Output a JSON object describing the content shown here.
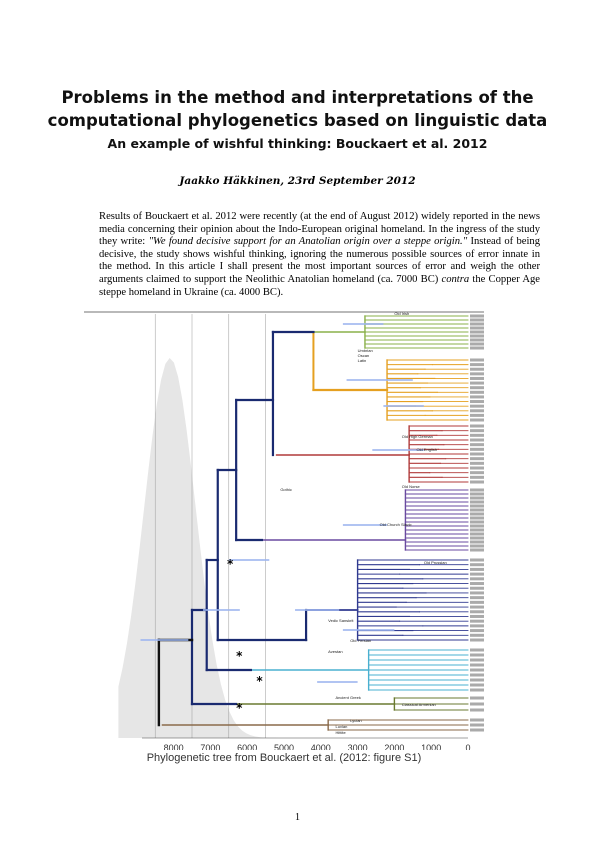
{
  "title_line1": "Problems in the method and interpretations of the",
  "title_line2": "computational phylogenetics based on linguistic data",
  "subtitle": "An example of wishful thinking: Bouckaert et al. 2012",
  "author": "Jaakko Häkkinen, 23rd September 2012",
  "abstract": {
    "part1": "Results of Bouckaert et al. 2012 were recently (at the end of August 2012) widely reported in the news media concerning their opinion about the Indo-European original homeland. In the ingress of the study they write: ",
    "quote": "\"We found decisive support for an Anatolian origin over a steppe origin.\"",
    "part2": " Instead of being decisive, the study shows wishful thinking, ignoring the numerous possible sources of error innate in the method. In this article I shall present the most important sources of error and weigh the other arguments claimed to support the Neolithic Anatolian homeland (ca. 7000 BC) ",
    "contra": "contra",
    "part3": " the Copper Age steppe homeland in Ukraine (ca. 4000 BC)."
  },
  "figure": {
    "caption": "Phylogenetic tree from Bouckaert et al. (2012: figure S1)",
    "axis_ticks": [
      "8000",
      "7000",
      "6000",
      "5000",
      "4000",
      "3000",
      "2000",
      "1000",
      "0"
    ],
    "asterisk": "*",
    "clade_labels": {
      "old_irish": "Old Irish",
      "hittite": "Hittite",
      "lycian": "Lycian",
      "luvian": "Luvian",
      "ancient_greek": "Ancient Greek",
      "vedic": "Vedic Sanskrit",
      "old_persian": "Old Persian",
      "avestan": "Avestan",
      "old_church_slavic": "Old Church Slavic",
      "gothic": "Gothic",
      "old_norse": "Old Norse",
      "old_english": "Old English",
      "old_high_german": "Old High German",
      "umbrian": "Umbrian",
      "oscan": "Oscan",
      "latin": "Latin",
      "old_prussian": "Old Prussian",
      "classical_armenian": "Classical Armenian"
    },
    "colors": {
      "celtic": "#8ab04a",
      "italic": "#e5a020",
      "germanic": "#b03a3a",
      "balto_slavic": "#6a4aa0",
      "indo_iranian": "#303a90",
      "albanian_greek": "#4ab0d0",
      "armenian": "#6a7a30",
      "anatolian": "#8a6a4a",
      "hpd": "#9eb6f0",
      "density": "#e6e6e6"
    }
  },
  "page_number": "1"
}
